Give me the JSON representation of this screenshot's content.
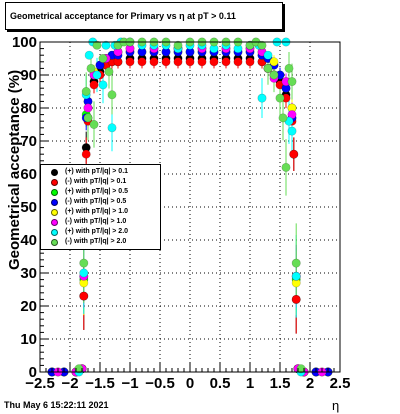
{
  "title": "Geometrical acceptance for Primary vs   η at pT > 0.11",
  "footer": "Thu May  6 15:22:11 2021",
  "chart_data": {
    "type": "scatter",
    "xlabel": "η",
    "ylabel": "Geometrical acceptance (%)",
    "xlim": [
      -2.5,
      2.5
    ],
    "ylim": [
      0,
      100
    ],
    "x_ticks": [
      "−2.5",
      "−2",
      "−1.5",
      "−1",
      "−0.5",
      "0",
      "0.5",
      "1",
      "1.5",
      "2",
      "2.5"
    ],
    "y_ticks": [
      "0",
      "10",
      "20",
      "30",
      "40",
      "50",
      "60",
      "70",
      "80",
      "90",
      "100"
    ],
    "grid": true,
    "legend_position": "middle-left",
    "series": [
      {
        "name": "(+) with pT/|q| > 0.1",
        "color": "#000000",
        "points": [
          [
            -2.3,
            0
          ],
          [
            -2.1,
            0
          ],
          [
            -1.9,
            0
          ],
          [
            -1.8,
            1
          ],
          [
            -1.77,
            23
          ],
          [
            -1.73,
            68
          ],
          [
            -1.7,
            77
          ],
          [
            -1.6,
            88
          ],
          [
            -1.5,
            91
          ],
          [
            -1.4,
            93
          ],
          [
            -1.3,
            94
          ],
          [
            -1.2,
            94
          ],
          [
            -1.0,
            95
          ],
          [
            -0.8,
            95
          ],
          [
            -0.6,
            95
          ],
          [
            -0.4,
            95
          ],
          [
            -0.2,
            95
          ],
          [
            0.0,
            95
          ],
          [
            0.2,
            95
          ],
          [
            0.4,
            95
          ],
          [
            0.6,
            95
          ],
          [
            0.8,
            95
          ],
          [
            1.0,
            95
          ],
          [
            1.2,
            94
          ],
          [
            1.3,
            92
          ],
          [
            1.4,
            90
          ],
          [
            1.5,
            88
          ],
          [
            1.6,
            84
          ],
          [
            1.7,
            77
          ],
          [
            1.73,
            66
          ],
          [
            1.77,
            22
          ],
          [
            1.8,
            1
          ],
          [
            1.9,
            0
          ],
          [
            2.1,
            0
          ],
          [
            2.3,
            0
          ]
        ]
      },
      {
        "name": "(-) with pT/|q| > 0.1",
        "color": "#ff0000",
        "points": [
          [
            -2.3,
            0
          ],
          [
            -2.1,
            0
          ],
          [
            -1.9,
            0
          ],
          [
            -1.8,
            1
          ],
          [
            -1.77,
            23
          ],
          [
            -1.73,
            66
          ],
          [
            -1.7,
            76
          ],
          [
            -1.6,
            87
          ],
          [
            -1.5,
            90
          ],
          [
            -1.4,
            93
          ],
          [
            -1.3,
            94
          ],
          [
            -1.2,
            94
          ],
          [
            -1.0,
            94
          ],
          [
            -0.8,
            94
          ],
          [
            -0.6,
            94
          ],
          [
            -0.4,
            94
          ],
          [
            -0.2,
            94
          ],
          [
            0.0,
            94
          ],
          [
            0.2,
            94
          ],
          [
            0.4,
            94
          ],
          [
            0.6,
            94
          ],
          [
            0.8,
            94
          ],
          [
            1.0,
            94
          ],
          [
            1.2,
            94
          ],
          [
            1.3,
            92
          ],
          [
            1.4,
            90
          ],
          [
            1.5,
            87
          ],
          [
            1.6,
            83
          ],
          [
            1.7,
            76
          ],
          [
            1.73,
            66
          ],
          [
            1.77,
            22
          ],
          [
            1.8,
            1
          ],
          [
            1.9,
            0
          ],
          [
            2.1,
            0
          ],
          [
            2.3,
            0
          ]
        ]
      },
      {
        "name": "(+) with pT/|q| > 0.5",
        "color": "#00ff00",
        "points": [
          [
            -2.3,
            0
          ],
          [
            -2.1,
            0
          ],
          [
            -1.9,
            0
          ],
          [
            -1.8,
            1
          ],
          [
            -1.77,
            28
          ],
          [
            -1.73,
            78
          ],
          [
            -1.7,
            82
          ],
          [
            -1.6,
            90
          ],
          [
            -1.5,
            93
          ],
          [
            -1.4,
            95
          ],
          [
            -1.3,
            96
          ],
          [
            -1.2,
            97
          ],
          [
            -1.0,
            97
          ],
          [
            -0.8,
            97
          ],
          [
            -0.6,
            97
          ],
          [
            -0.4,
            97
          ],
          [
            -0.2,
            97
          ],
          [
            0.0,
            97
          ],
          [
            0.2,
            97
          ],
          [
            0.4,
            97
          ],
          [
            0.6,
            97
          ],
          [
            0.8,
            97
          ],
          [
            1.0,
            97
          ],
          [
            1.2,
            96
          ],
          [
            1.3,
            95
          ],
          [
            1.4,
            93
          ],
          [
            1.5,
            90
          ],
          [
            1.6,
            86
          ],
          [
            1.7,
            80
          ],
          [
            1.77,
            28
          ],
          [
            1.8,
            1
          ],
          [
            1.9,
            0
          ],
          [
            2.1,
            0
          ],
          [
            2.3,
            0
          ]
        ]
      },
      {
        "name": "(-) with pT/|q| > 0.5",
        "color": "#0000ff",
        "points": [
          [
            -2.3,
            0
          ],
          [
            -2.1,
            0
          ],
          [
            -1.9,
            0
          ],
          [
            -1.8,
            1
          ],
          [
            -1.77,
            29
          ],
          [
            -1.73,
            77
          ],
          [
            -1.7,
            82
          ],
          [
            -1.6,
            90
          ],
          [
            -1.5,
            93
          ],
          [
            -1.4,
            95
          ],
          [
            -1.3,
            96
          ],
          [
            -1.2,
            96
          ],
          [
            -1.0,
            97
          ],
          [
            -0.8,
            97
          ],
          [
            -0.6,
            97
          ],
          [
            -0.4,
            97
          ],
          [
            -0.2,
            97
          ],
          [
            0.0,
            97
          ],
          [
            0.2,
            97
          ],
          [
            0.4,
            97
          ],
          [
            0.6,
            97
          ],
          [
            0.8,
            97
          ],
          [
            1.0,
            97
          ],
          [
            1.2,
            96
          ],
          [
            1.3,
            95
          ],
          [
            1.4,
            93
          ],
          [
            1.5,
            90
          ],
          [
            1.6,
            86
          ],
          [
            1.7,
            77
          ],
          [
            1.77,
            29
          ],
          [
            1.8,
            1
          ],
          [
            1.9,
            0
          ],
          [
            2.1,
            0
          ],
          [
            2.3,
            0
          ]
        ]
      },
      {
        "name": "(+) with pT/|q| > 1.0",
        "color": "#ffff00",
        "points": [
          [
            -2.2,
            0
          ],
          [
            -1.9,
            0
          ],
          [
            -1.8,
            1
          ],
          [
            -1.77,
            27
          ],
          [
            -1.7,
            80
          ],
          [
            -1.6,
            91
          ],
          [
            -1.4,
            95
          ],
          [
            -1.2,
            97
          ],
          [
            -1.0,
            98
          ],
          [
            -0.6,
            98
          ],
          [
            -0.2,
            98
          ],
          [
            0.2,
            98
          ],
          [
            0.6,
            98
          ],
          [
            1.0,
            98
          ],
          [
            1.2,
            97
          ],
          [
            1.4,
            94
          ],
          [
            1.6,
            88
          ],
          [
            1.7,
            80
          ],
          [
            1.77,
            27
          ],
          [
            1.8,
            1
          ],
          [
            1.9,
            0
          ],
          [
            2.2,
            0
          ]
        ]
      },
      {
        "name": "(-) with pT/|q| > 1.0",
        "color": "#ff00ff",
        "points": [
          [
            -2.2,
            0
          ],
          [
            -1.9,
            0
          ],
          [
            -1.8,
            1
          ],
          [
            -1.77,
            29
          ],
          [
            -1.7,
            80
          ],
          [
            -1.6,
            90
          ],
          [
            -1.4,
            95
          ],
          [
            -1.2,
            97
          ],
          [
            -1.0,
            98
          ],
          [
            -0.6,
            98
          ],
          [
            -0.2,
            98
          ],
          [
            0.2,
            98
          ],
          [
            0.6,
            98
          ],
          [
            1.0,
            98
          ],
          [
            1.2,
            97
          ],
          [
            1.4,
            89
          ],
          [
            1.6,
            88
          ],
          [
            1.7,
            78
          ],
          [
            1.77,
            29
          ],
          [
            1.8,
            1
          ],
          [
            1.9,
            0
          ],
          [
            2.2,
            0
          ]
        ]
      },
      {
        "name": "(+) with pT/|q| > 2.0",
        "color": "#00ffff",
        "points": [
          [
            -1.85,
            0
          ],
          [
            -1.77,
            30
          ],
          [
            -1.73,
            84
          ],
          [
            -1.68,
            96
          ],
          [
            -1.62,
            100
          ],
          [
            -1.55,
            90
          ],
          [
            -1.45,
            87
          ],
          [
            -1.4,
            99
          ],
          [
            -1.3,
            74
          ],
          [
            -1.25,
            99
          ],
          [
            -1.15,
            100
          ],
          [
            -1.0,
            100
          ],
          [
            -0.8,
            99
          ],
          [
            -0.6,
            99
          ],
          [
            -0.4,
            99
          ],
          [
            -0.2,
            98
          ],
          [
            0.0,
            99
          ],
          [
            0.2,
            99
          ],
          [
            0.4,
            98
          ],
          [
            0.6,
            99
          ],
          [
            0.8,
            98
          ],
          [
            1.0,
            99
          ],
          [
            1.15,
            99
          ],
          [
            1.2,
            83
          ],
          [
            1.3,
            96
          ],
          [
            1.45,
            100
          ],
          [
            1.6,
            100
          ],
          [
            1.65,
            76
          ],
          [
            1.7,
            73
          ],
          [
            1.77,
            29
          ],
          [
            1.85,
            0
          ]
        ]
      },
      {
        "name": "(-) with pT/|q| > 2.0",
        "color": "#66dd55",
        "points": [
          [
            -1.85,
            1
          ],
          [
            -1.77,
            33
          ],
          [
            -1.73,
            85
          ],
          [
            -1.7,
            77
          ],
          [
            -1.65,
            92
          ],
          [
            -1.6,
            75
          ],
          [
            -1.55,
            99
          ],
          [
            -1.45,
            95
          ],
          [
            -1.35,
            91
          ],
          [
            -1.3,
            84
          ],
          [
            -1.2,
            99
          ],
          [
            -1.1,
            100
          ],
          [
            -1.0,
            100
          ],
          [
            -0.8,
            100
          ],
          [
            -0.6,
            100
          ],
          [
            -0.4,
            100
          ],
          [
            -0.2,
            99
          ],
          [
            0.0,
            100
          ],
          [
            0.2,
            100
          ],
          [
            0.4,
            100
          ],
          [
            0.6,
            100
          ],
          [
            0.8,
            100
          ],
          [
            1.0,
            99
          ],
          [
            1.1,
            100
          ],
          [
            1.2,
            99
          ],
          [
            1.3,
            92
          ],
          [
            1.4,
            90
          ],
          [
            1.5,
            83
          ],
          [
            1.55,
            77
          ],
          [
            1.6,
            62
          ],
          [
            1.65,
            92
          ],
          [
            1.7,
            88
          ],
          [
            1.77,
            33
          ],
          [
            1.85,
            1
          ]
        ]
      }
    ]
  }
}
